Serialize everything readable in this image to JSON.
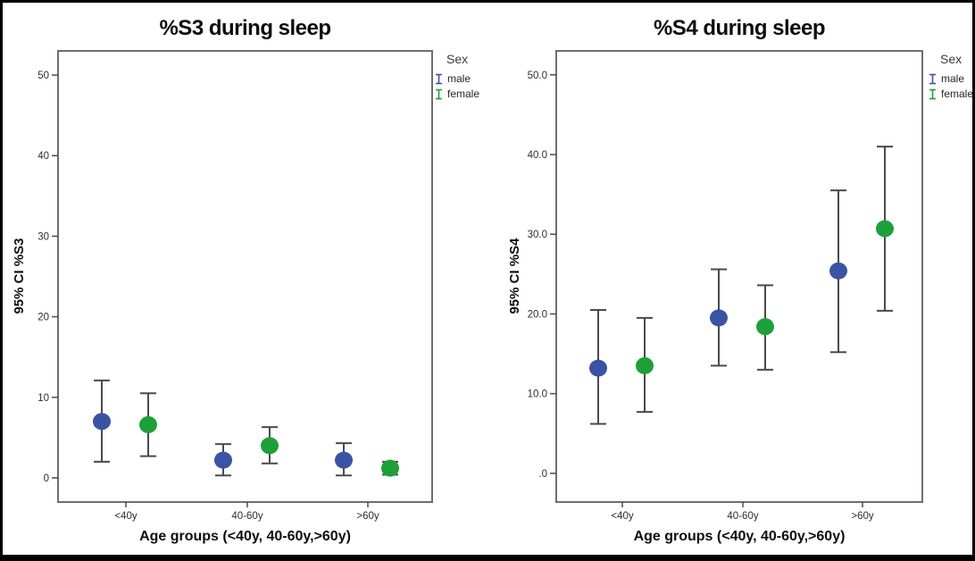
{
  "figure": {
    "background": "#ffffff",
    "border_color": "#000000"
  },
  "chart_data": [
    {
      "type": "errorbar",
      "title": "%S3 during sleep",
      "ylabel": "95% CI %S3",
      "xlabel": "Age groups (<40y, 40-60y,>60y)",
      "categories": [
        "<40y",
        "40-60y",
        ">60y"
      ],
      "ylim": [
        -3,
        53
      ],
      "yticks": [
        0,
        10,
        20,
        30,
        40,
        50
      ],
      "ytick_labels": [
        "0",
        "10",
        "20",
        "30",
        "40",
        "50"
      ],
      "grid": false,
      "legend_title": "Sex",
      "legend_position": "right-top",
      "series": [
        {
          "name": "male",
          "color": "#3A53A4",
          "means": [
            7.0,
            2.2,
            2.2
          ],
          "ci_low": [
            2.0,
            0.3,
            0.3
          ],
          "ci_high": [
            12.1,
            4.2,
            4.3
          ]
        },
        {
          "name": "female",
          "color": "#1EA039",
          "means": [
            6.6,
            4.0,
            1.2
          ],
          "ci_low": [
            2.7,
            1.8,
            0.4
          ],
          "ci_high": [
            10.5,
            6.3,
            2.0
          ]
        }
      ]
    },
    {
      "type": "errorbar",
      "title": "%S4 during sleep",
      "ylabel": "95% CI %S4",
      "xlabel": "Age groups (<40y, 40-60y,>60y)",
      "categories": [
        "<40y",
        "40-60y",
        ">60y"
      ],
      "ylim": [
        -3.6,
        53
      ],
      "yticks": [
        0,
        10,
        20,
        30,
        40,
        50
      ],
      "ytick_labels": [
        ".0",
        "10.0",
        "20.0",
        "30.0",
        "40.0",
        "50.0"
      ],
      "grid": false,
      "legend_title": "Sex",
      "legend_position": "right-top",
      "series": [
        {
          "name": "male",
          "color": "#3A53A4",
          "means": [
            13.2,
            19.5,
            25.4
          ],
          "ci_low": [
            6.2,
            13.5,
            15.2
          ],
          "ci_high": [
            20.5,
            25.6,
            35.5
          ]
        },
        {
          "name": "female",
          "color": "#1EA039",
          "means": [
            13.5,
            18.4,
            30.7
          ],
          "ci_low": [
            7.7,
            13.0,
            20.4
          ],
          "ci_high": [
            19.5,
            23.6,
            41.0
          ]
        }
      ]
    }
  ]
}
